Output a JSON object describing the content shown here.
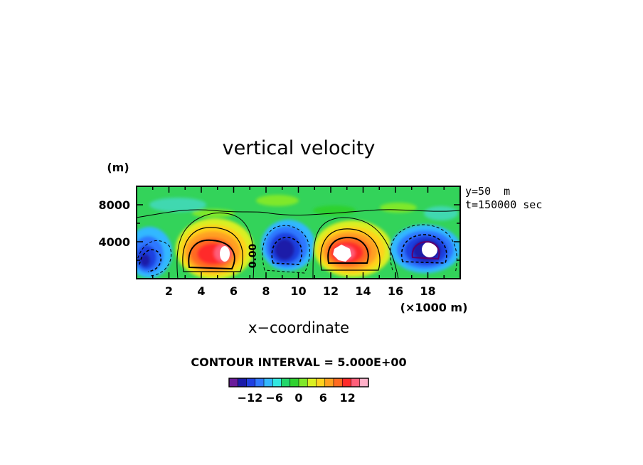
{
  "chart_data": {
    "type": "heatmap",
    "title": "vertical velocity",
    "xlabel": "x−coordinate",
    "xunit": "(×1000 m)",
    "yunit": "(m)",
    "xlim": [
      0,
      20
    ],
    "ylim": [
      0,
      10000
    ],
    "xticks": [
      2,
      4,
      6,
      8,
      10,
      12,
      14,
      16,
      18
    ],
    "xtick_labels": [
      "2",
      "4",
      "6",
      "8",
      "10",
      "12",
      "14",
      "16",
      "18"
    ],
    "yticks": [
      4000,
      8000
    ],
    "ytick_labels": [
      "4000",
      "8000"
    ],
    "annotation_lines": [
      "y=50  m",
      "t=150000 sec"
    ],
    "contour_label": "0.00",
    "contour_interval_text": "CONTOUR INTERVAL = 5.000E+00",
    "colorbar": {
      "levels": [
        -15,
        -12,
        -9,
        -6,
        -3,
        0,
        3,
        6,
        9,
        12,
        15
      ],
      "ticks": [
        -12,
        -6,
        0,
        6,
        12
      ],
      "tick_labels": [
        "−12",
        "−6",
        "0",
        "6",
        "12"
      ],
      "colors": [
        "#6a1b9a",
        "#1a1aa8",
        "#1f3fe0",
        "#2f78ff",
        "#33b8ff",
        "#33e8e0",
        "#22d66a",
        "#2fd12f",
        "#7fe82a",
        "#d9ef22",
        "#ffd21f",
        "#ffa020",
        "#ff6a20",
        "#ff2a2a",
        "#ff5f7a",
        "#ffb0c8"
      ]
    },
    "features": [
      {
        "x": 0.8,
        "y": 2600,
        "w": "min",
        "value": -13
      },
      {
        "x": 4.8,
        "y": 2900,
        "w": "max",
        "value": 17
      },
      {
        "x": 9.2,
        "y": 2800,
        "w": "min",
        "value": -14
      },
      {
        "x": 12.8,
        "y": 2700,
        "w": "max",
        "value": 17
      },
      {
        "x": 17.8,
        "y": 3100,
        "w": "min",
        "value": -17
      }
    ]
  }
}
